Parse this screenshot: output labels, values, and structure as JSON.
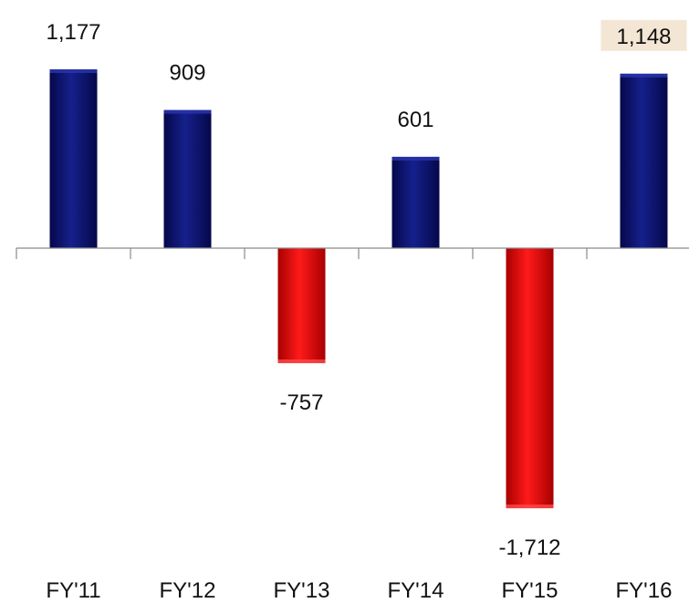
{
  "chart_data": {
    "type": "bar",
    "categories": [
      "FY'11",
      "FY'12",
      "FY'13",
      "FY'14",
      "FY'15",
      "FY'16"
    ],
    "values": [
      1177,
      909,
      -757,
      601,
      -1712,
      1148
    ],
    "data_labels": [
      "1,177",
      "909",
      "-757",
      "601",
      "-1,712",
      "1,148"
    ],
    "title": "",
    "xlabel": "",
    "ylabel": "",
    "ylim": [
      -1712,
      1177
    ],
    "grid": false,
    "legend": "none",
    "colors": {
      "positive": "#0b0f6e",
      "negative": "#e00000",
      "highlight_label_bg": "#f3e6d4",
      "axis": "#8a8a8a"
    },
    "highlighted_label_index": 5
  }
}
